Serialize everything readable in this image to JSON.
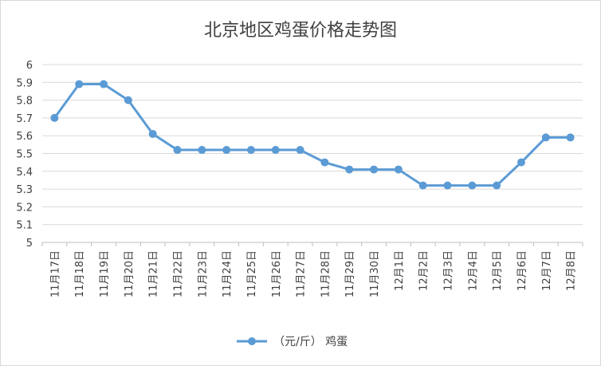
{
  "chart_data": {
    "type": "line",
    "title": "北京地区鸡蛋价格走势图",
    "categories": [
      "11月17日",
      "11月18日",
      "11月19日",
      "11月20日",
      "11月21日",
      "11月22日",
      "11月23日",
      "11月24日",
      "11月25日",
      "11月26日",
      "11月27日",
      "11月28日",
      "11月29日",
      "11月30日",
      "12月1日",
      "12月2日",
      "12月3日",
      "12月4日",
      "12月5日",
      "12月6日",
      "12月7日",
      "12月8日"
    ],
    "series": [
      {
        "name": "（元/斤） 鸡蛋",
        "color": "#5b9bd5",
        "values": [
          5.7,
          5.89,
          5.89,
          5.8,
          5.61,
          5.52,
          5.52,
          5.52,
          5.52,
          5.52,
          5.52,
          5.45,
          5.41,
          5.41,
          5.41,
          5.32,
          5.32,
          5.32,
          5.32,
          5.45,
          5.59,
          5.59
        ]
      }
    ],
    "ylim": [
      5,
      6
    ],
    "yticks": [
      "5",
      "5.1",
      "5.2",
      "5.3",
      "5.4",
      "5.5",
      "5.6",
      "5.7",
      "5.8",
      "5.9",
      "6"
    ],
    "grid": true,
    "legend_position": "bottom"
  }
}
